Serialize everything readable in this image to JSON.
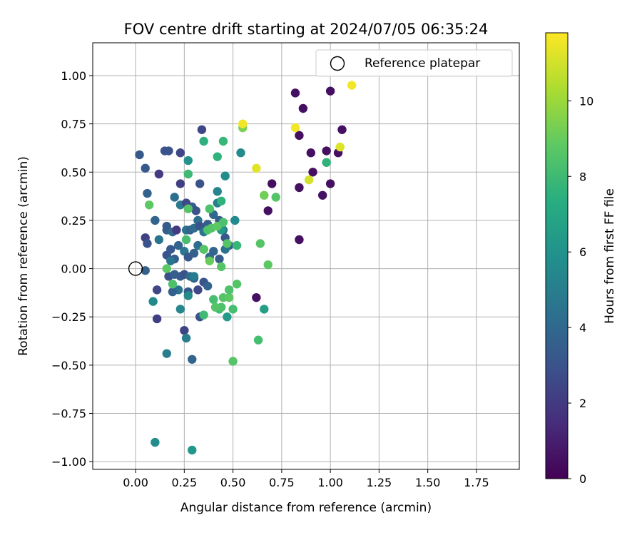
{
  "chart_data": {
    "type": "scatter",
    "title": "FOV centre drift starting at 2024/07/05 06:35:24",
    "xlabel": "Angular distance from reference (arcmin)",
    "ylabel": "Rotation from reference (arcmin)",
    "xlim": [
      -0.22,
      1.97
    ],
    "ylim": [
      -1.04,
      1.17
    ],
    "xticks": [
      "0.00",
      "0.25",
      "0.50",
      "0.75",
      "1.00",
      "1.25",
      "1.50",
      "1.75"
    ],
    "xtick_values": [
      0,
      0.25,
      0.5,
      0.75,
      1.0,
      1.25,
      1.5,
      1.75
    ],
    "yticks": [
      "−1.00",
      "−0.75",
      "−0.50",
      "−0.25",
      "0.00",
      "0.25",
      "0.50",
      "0.75",
      "1.00"
    ],
    "ytick_values": [
      -1.0,
      -0.75,
      -0.5,
      -0.25,
      0,
      0.25,
      0.5,
      0.75,
      1.0
    ],
    "grid": true,
    "legend": {
      "position": "top-right",
      "entries": [
        {
          "label": "Reference platepar",
          "marker": "open-circle"
        }
      ]
    },
    "reference_point": {
      "x": 0.0,
      "y": 0.0
    },
    "colorbar": {
      "label": "Hours from first FF file",
      "colormap": "viridis",
      "range": [
        0,
        11.8
      ],
      "ticks": [
        "0",
        "2",
        "4",
        "6",
        "8",
        "10"
      ],
      "tick_values": [
        0,
        2,
        4,
        6,
        8,
        10
      ]
    },
    "series": [
      {
        "points": [
          [
            0.82,
            0.91,
            0.5
          ],
          [
            0.86,
            0.83,
            0.5
          ],
          [
            1.0,
            0.92,
            0.5
          ],
          [
            1.06,
            0.72,
            0.5
          ],
          [
            0.84,
            0.69,
            0.5
          ],
          [
            0.9,
            0.6,
            0.5
          ],
          [
            0.91,
            0.5,
            0.5
          ],
          [
            0.98,
            0.61,
            0.5
          ],
          [
            1.04,
            0.6,
            0.5
          ],
          [
            0.7,
            0.44,
            0.5
          ],
          [
            0.84,
            0.42,
            0.5
          ],
          [
            0.96,
            0.38,
            0.5
          ],
          [
            1.0,
            0.44,
            0.5
          ],
          [
            0.68,
            0.3,
            0.5
          ],
          [
            0.84,
            0.15,
            0.5
          ],
          [
            0.62,
            -0.15,
            0.5
          ],
          [
            0.02,
            0.59,
            3.3
          ],
          [
            0.05,
            0.52,
            3.3
          ],
          [
            0.15,
            0.61,
            3.0
          ],
          [
            0.17,
            0.61,
            3.0
          ],
          [
            0.23,
            0.6,
            2.5
          ],
          [
            0.34,
            0.72,
            2.5
          ],
          [
            0.12,
            0.49,
            2.0
          ],
          [
            0.23,
            0.44,
            2.2
          ],
          [
            0.33,
            0.44,
            3.0
          ],
          [
            0.06,
            0.39,
            3.6
          ],
          [
            0.2,
            0.37,
            4.3
          ],
          [
            0.23,
            0.33,
            4.8
          ],
          [
            0.29,
            0.32,
            3.5
          ],
          [
            0.31,
            0.3,
            3.0
          ],
          [
            0.26,
            0.34,
            2.6
          ],
          [
            0.32,
            0.25,
            4.3
          ],
          [
            0.1,
            0.25,
            3.8
          ],
          [
            0.05,
            0.16,
            2.3
          ],
          [
            0.06,
            0.13,
            3.0
          ],
          [
            0.12,
            0.15,
            4.5
          ],
          [
            0.16,
            0.2,
            3.5
          ],
          [
            0.16,
            0.22,
            3.3
          ],
          [
            0.19,
            0.19,
            4.0
          ],
          [
            0.21,
            0.2,
            2.0
          ],
          [
            0.26,
            0.2,
            4.5
          ],
          [
            0.28,
            0.2,
            3.8
          ],
          [
            0.3,
            0.21,
            4.2
          ],
          [
            0.33,
            0.22,
            3.0
          ],
          [
            0.35,
            0.19,
            4.5
          ],
          [
            0.37,
            0.23,
            3.5
          ],
          [
            0.4,
            0.28,
            4.0
          ],
          [
            0.43,
            0.25,
            3.6
          ],
          [
            0.45,
            0.2,
            4.5
          ],
          [
            0.46,
            0.16,
            3.2
          ],
          [
            0.48,
            0.12,
            3.6
          ],
          [
            0.16,
            0.07,
            3.0
          ],
          [
            0.18,
            0.1,
            3.2
          ],
          [
            0.2,
            0.05,
            3.4
          ],
          [
            0.22,
            0.12,
            3.8
          ],
          [
            0.25,
            0.09,
            4.6
          ],
          [
            0.27,
            0.06,
            3.2
          ],
          [
            0.3,
            0.08,
            3.6
          ],
          [
            0.32,
            0.12,
            4.2
          ],
          [
            0.35,
            0.1,
            3.0
          ],
          [
            0.38,
            0.06,
            4.0
          ],
          [
            0.4,
            0.09,
            3.8
          ],
          [
            0.43,
            0.05,
            3.4
          ],
          [
            0.46,
            0.1,
            4.4
          ],
          [
            0.17,
            -0.04,
            2.8
          ],
          [
            0.2,
            -0.03,
            3.6
          ],
          [
            0.23,
            -0.04,
            3.4
          ],
          [
            0.25,
            -0.03,
            3.0
          ],
          [
            0.28,
            -0.04,
            4.2
          ],
          [
            0.3,
            -0.05,
            3.6
          ],
          [
            0.35,
            -0.07,
            3.0
          ],
          [
            0.37,
            -0.09,
            3.8
          ],
          [
            0.32,
            -0.11,
            2.5
          ],
          [
            0.27,
            -0.12,
            3.2
          ],
          [
            0.22,
            -0.11,
            4.5
          ],
          [
            0.19,
            -0.12,
            3.6
          ],
          [
            0.05,
            -0.01,
            3.6
          ],
          [
            0.11,
            -0.11,
            2.5
          ],
          [
            0.11,
            -0.26,
            2.2
          ],
          [
            0.25,
            -0.32,
            2.4
          ],
          [
            0.33,
            -0.25,
            3.0
          ],
          [
            0.29,
            -0.47,
            3.8
          ],
          [
            0.26,
            -0.36,
            5.0
          ],
          [
            0.16,
            -0.44,
            5.0
          ],
          [
            0.09,
            -0.17,
            5.5
          ],
          [
            0.23,
            -0.21,
            5.4
          ],
          [
            0.27,
            -0.14,
            5.6
          ],
          [
            0.3,
            -0.04,
            4.9
          ],
          [
            0.18,
            0.04,
            4.6
          ],
          [
            0.42,
            0.4,
            5.3
          ],
          [
            0.42,
            0.34,
            5.0
          ],
          [
            0.46,
            0.48,
            5.7
          ],
          [
            0.51,
            0.25,
            5.5
          ],
          [
            0.27,
            0.56,
            6.0
          ],
          [
            0.54,
            0.6,
            5.6
          ],
          [
            0.66,
            -0.21,
            6.6
          ],
          [
            0.47,
            -0.25,
            6.4
          ],
          [
            0.1,
            -0.9,
            5.7
          ],
          [
            0.29,
            -0.94,
            6.2
          ],
          [
            0.44,
            0.2,
            6.4
          ],
          [
            0.35,
            0.66,
            7.5
          ],
          [
            0.42,
            0.58,
            7.6
          ],
          [
            0.45,
            0.66,
            7.8
          ],
          [
            0.27,
            0.49,
            8.0
          ],
          [
            0.07,
            0.33,
            8.8
          ],
          [
            0.27,
            0.31,
            8.6
          ],
          [
            0.38,
            0.31,
            8.4
          ],
          [
            0.44,
            0.35,
            7.6
          ],
          [
            0.37,
            0.2,
            8.4
          ],
          [
            0.39,
            0.21,
            8.6
          ],
          [
            0.42,
            0.22,
            8.8
          ],
          [
            0.45,
            0.24,
            8.4
          ],
          [
            0.47,
            0.13,
            8.6
          ],
          [
            0.52,
            0.12,
            7.8
          ],
          [
            0.26,
            0.15,
            8.2
          ],
          [
            0.35,
            0.1,
            8.6
          ],
          [
            0.38,
            0.04,
            9.0
          ],
          [
            0.44,
            0.01,
            8.6
          ],
          [
            0.16,
            0.0,
            8.8
          ],
          [
            0.19,
            -0.08,
            8.4
          ],
          [
            0.4,
            -0.16,
            8.2
          ],
          [
            0.45,
            -0.15,
            8.6
          ],
          [
            0.48,
            -0.15,
            8.8
          ],
          [
            0.48,
            -0.11,
            8.4
          ],
          [
            0.52,
            -0.08,
            8.6
          ],
          [
            0.43,
            -0.21,
            8.0
          ],
          [
            0.44,
            -0.2,
            8.4
          ],
          [
            0.5,
            -0.21,
            8.2
          ],
          [
            0.41,
            -0.2,
            8.6
          ],
          [
            0.35,
            -0.24,
            8.0
          ],
          [
            0.64,
            0.13,
            8.6
          ],
          [
            0.68,
            0.02,
            8.8
          ],
          [
            0.66,
            0.38,
            9.2
          ],
          [
            0.72,
            0.37,
            8.6
          ],
          [
            0.55,
            0.73,
            9.4
          ],
          [
            0.5,
            -0.48,
            8.6
          ],
          [
            0.63,
            -0.37,
            8.2
          ],
          [
            0.98,
            0.55,
            7.6
          ],
          [
            0.55,
            0.75,
            11.6
          ],
          [
            0.62,
            0.52,
            11.3
          ],
          [
            0.82,
            0.73,
            11.6
          ],
          [
            0.89,
            0.46,
            11.0
          ],
          [
            1.05,
            0.63,
            11.2
          ],
          [
            1.11,
            0.95,
            11.6
          ]
        ]
      }
    ]
  }
}
